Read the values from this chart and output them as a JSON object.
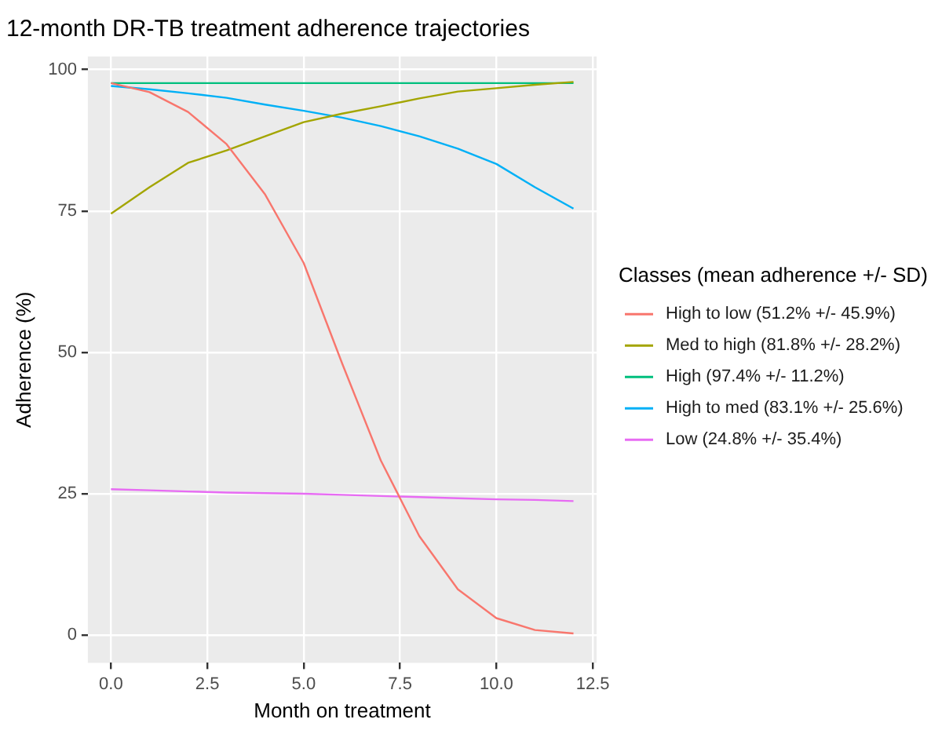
{
  "chart_data": {
    "type": "line",
    "title": "12-month DR-TB treatment adherence trajectories",
    "xlabel": "Month on treatment",
    "ylabel": "Adherence (%)",
    "legend_title": "Classes (mean adherence +/- SD)",
    "legend": "right",
    "grid": true,
    "marker": "none",
    "line_style": "solid",
    "x": [
      0,
      1,
      2,
      3,
      4,
      5,
      6,
      7,
      8,
      9,
      10,
      11,
      12
    ],
    "xlim": [
      -0.6,
      12.6
    ],
    "xticks": [
      {
        "value": 0,
        "label": "0.0"
      },
      2.5,
      {
        "value": 5,
        "label": "5.0"
      },
      7.5,
      {
        "value": 10,
        "label": "10.0"
      },
      12.5
    ],
    "ylim": [
      -4.9,
      102.3
    ],
    "yticks": [
      0,
      25,
      50,
      75,
      100
    ],
    "series": [
      {
        "name": "High to low (51.2% +/- 45.9%)",
        "color": "#f8766d",
        "values": [
          97.6,
          96,
          92.5,
          86.8,
          77.9,
          65.8,
          48,
          30.9,
          17.5,
          8.1,
          3,
          0.9,
          0.3
        ]
      },
      {
        "name": "Med to high (81.8% +/- 28.2%)",
        "color": "#a3a500",
        "values": [
          74.5,
          79.2,
          83.5,
          85.7,
          88.2,
          90.7,
          92.2,
          93.5,
          94.9,
          96.1,
          96.7,
          97.3,
          97.8
        ]
      },
      {
        "name": "High (97.4% +/- 11.2%)",
        "color": "#00bf7d",
        "values": [
          97.6,
          97.6,
          97.6,
          97.6,
          97.6,
          97.6,
          97.6,
          97.6,
          97.6,
          97.6,
          97.6,
          97.6,
          97.6
        ]
      },
      {
        "name": "High to med (83.1% +/- 25.6%)",
        "color": "#00b0f6",
        "values": [
          97.1,
          96.5,
          95.8,
          95,
          93.8,
          92.7,
          91.5,
          90,
          88.2,
          86,
          83.3,
          79.2,
          75.4
        ]
      },
      {
        "name": "Low (24.8% +/- 35.4%)",
        "color": "#e76bf3",
        "values": [
          25.8,
          25.6,
          25.4,
          25.2,
          25.1,
          25,
          24.8,
          24.6,
          24.4,
          24.2,
          24,
          23.9,
          23.7
        ]
      }
    ]
  }
}
